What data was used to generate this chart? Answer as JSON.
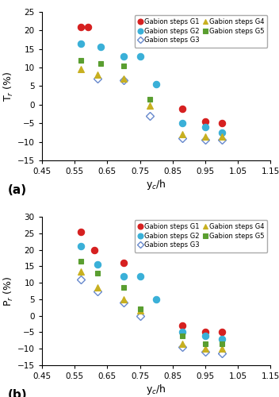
{
  "plot_a": {
    "ylabel": "T$_r$ (%)",
    "ylim": [
      -15,
      25
    ],
    "yticks": [
      -15,
      -10,
      -5,
      0,
      5,
      10,
      15,
      20,
      25
    ],
    "G1": {
      "x": [
        0.57,
        0.59,
        0.88,
        0.95,
        1.0
      ],
      "y": [
        21,
        21,
        -1,
        -4.5,
        -5
      ]
    },
    "G2": {
      "x": [
        0.57,
        0.63,
        0.7,
        0.75,
        0.8,
        0.88,
        0.95,
        1.0
      ],
      "y": [
        16.5,
        15.5,
        13,
        13,
        5.5,
        -5,
        -6,
        -7.5
      ]
    },
    "G3": {
      "x": [
        0.62,
        0.7,
        0.78,
        0.88,
        0.95,
        1.0
      ],
      "y": [
        7,
        6.5,
        -3,
        -9,
        -9.5,
        -9.5
      ]
    },
    "G4": {
      "x": [
        0.57,
        0.62,
        0.7,
        0.78,
        0.88,
        0.95,
        1.0
      ],
      "y": [
        9.5,
        8,
        7,
        -0.2,
        -8,
        -8.5,
        -8.5
      ]
    },
    "G5": {
      "x": [
        0.57,
        0.63,
        0.7,
        0.78
      ],
      "y": [
        12,
        11,
        10.5,
        1.5
      ]
    }
  },
  "plot_b": {
    "ylabel": "P$_r$ (%)",
    "ylim": [
      -15,
      30
    ],
    "yticks": [
      -15,
      -10,
      -5,
      0,
      5,
      10,
      15,
      20,
      25,
      30
    ],
    "G1": {
      "x": [
        0.57,
        0.61,
        0.7,
        0.88,
        0.95,
        1.0
      ],
      "y": [
        25.5,
        20,
        16,
        -3,
        -5,
        -5
      ]
    },
    "G2": {
      "x": [
        0.57,
        0.62,
        0.7,
        0.75,
        0.8,
        0.88,
        0.95,
        1.0
      ],
      "y": [
        21,
        15.5,
        12,
        12,
        5,
        -5,
        -6,
        -7
      ]
    },
    "G3": {
      "x": [
        0.57,
        0.62,
        0.7,
        0.75,
        0.88,
        0.95,
        1.0
      ],
      "y": [
        11,
        7.5,
        4,
        0,
        -9.5,
        -11,
        -11.5
      ]
    },
    "G4": {
      "x": [
        0.57,
        0.62,
        0.7,
        0.75,
        0.88,
        0.95,
        1.0
      ],
      "y": [
        13.5,
        8.5,
        5,
        1.5,
        -8.5,
        -10,
        -10
      ]
    },
    "G5": {
      "x": [
        0.57,
        0.62,
        0.7,
        0.75,
        0.88,
        0.95,
        1.0
      ],
      "y": [
        16.5,
        13,
        8.5,
        2,
        -6,
        -8.5,
        -8.5
      ]
    }
  },
  "xlabel": "y$_c$/h",
  "xlim": [
    0.45,
    1.15
  ],
  "xticks": [
    0.45,
    0.55,
    0.65,
    0.75,
    0.85,
    0.95,
    1.05,
    1.15
  ],
  "xticklabels": [
    "0.45",
    "0.55",
    "0.65",
    "0.75",
    "0.85",
    "0.95",
    "1.05",
    "1.15"
  ],
  "color_G1": "#d62020",
  "color_G2": "#3ab0d8",
  "color_G3": "#6688cc",
  "color_G4": "#c8b020",
  "color_G5": "#5a9e30",
  "marker_G1": "o",
  "marker_G2": "o",
  "marker_G3": "D",
  "marker_G4": "^",
  "marker_G5": "s",
  "markersize_filled": 6,
  "markersize_open": 5,
  "label_a": "(a)",
  "label_b": "(b)"
}
